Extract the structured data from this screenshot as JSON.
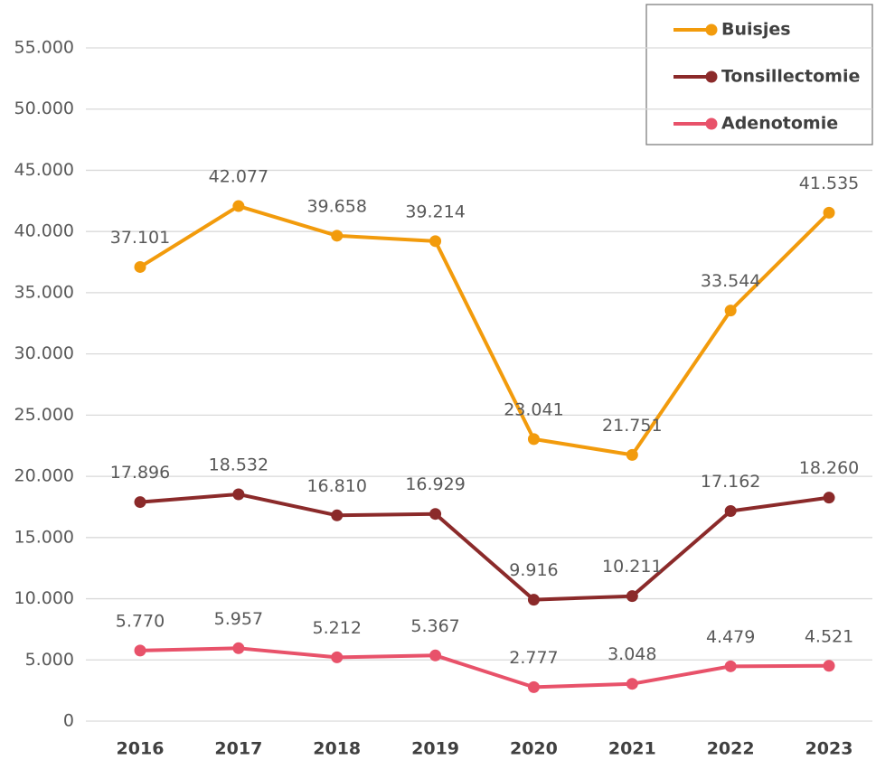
{
  "chart_data": {
    "type": "line",
    "categories": [
      "2016",
      "2017",
      "2018",
      "2019",
      "2020",
      "2021",
      "2022",
      "2023"
    ],
    "series": [
      {
        "name": "Buisjes",
        "color": "#f29b0c",
        "values": [
          37101,
          42077,
          39658,
          39214,
          23041,
          21751,
          33544,
          41535
        ],
        "value_labels": [
          "37.101",
          "42.077",
          "39.658",
          "39.214",
          "23.041",
          "21.751",
          "33.544",
          "41.535"
        ]
      },
      {
        "name": "Tonsillectomie",
        "color": "#8b2a2a",
        "values": [
          17896,
          18532,
          16810,
          16929,
          9916,
          10211,
          17162,
          18260
        ],
        "value_labels": [
          "17.896",
          "18.532",
          "16.810",
          "16.929",
          "9.916",
          "10.211",
          "17.162",
          "18.260"
        ]
      },
      {
        "name": "Adenotomie",
        "color": "#e8526a",
        "values": [
          5770,
          5957,
          5212,
          5367,
          2777,
          3048,
          4479,
          4521
        ],
        "value_labels": [
          "5.770",
          "5.957",
          "5.212",
          "5.367",
          "2.777",
          "3.048",
          "4.479",
          "4.521"
        ]
      }
    ],
    "ylim": [
      0,
      55000
    ],
    "yticks": [
      0,
      {
        "value": 5000,
        "label": "5.000"
      },
      {
        "value": 10000,
        "label": "10.000"
      },
      {
        "value": 15000,
        "label": "15.000"
      },
      {
        "value": 20000,
        "label": "20.000"
      },
      {
        "value": 25000,
        "label": "25.000"
      },
      {
        "value": 30000,
        "label": "30.000"
      },
      {
        "value": 35000,
        "label": "35.000"
      },
      {
        "value": 40000,
        "label": "40.000"
      },
      {
        "value": 45000,
        "label": "45.000"
      },
      {
        "value": 50000,
        "label": "50.000"
      },
      {
        "value": 55000,
        "label": "55.000"
      }
    ],
    "grid": true,
    "legend": "top-right"
  }
}
